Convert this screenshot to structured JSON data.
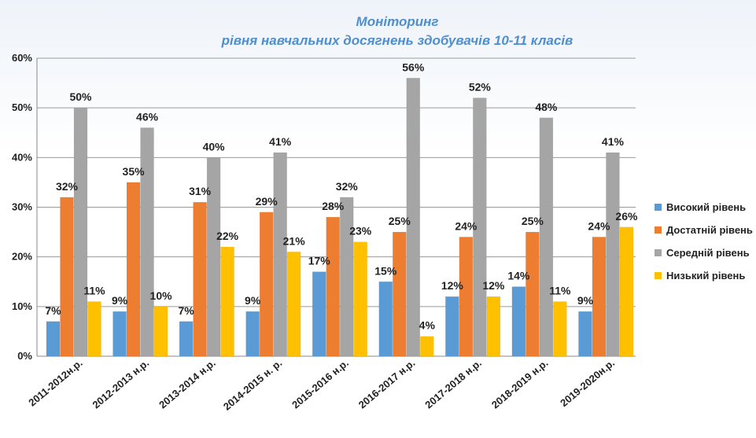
{
  "chart_data": {
    "type": "bar",
    "title": [
      "Моніторинг",
      "рівня навчальних досягнень здобувачів  10-11 класів"
    ],
    "categories": [
      "2011-2012н.р.",
      "2012-2013 н.р.",
      "2013-2014 н.р.",
      "2014-2015 н. р.",
      "2015-2016 н.р.",
      "2016-2017 н.р.",
      "2017-2018 н.р.",
      "2018-2019 н.р.",
      "2019-2020н.р."
    ],
    "series": [
      {
        "name": "Високий рівень",
        "color": "#5b9bd5",
        "values": [
          7,
          9,
          7,
          9,
          17,
          15,
          12,
          14,
          9
        ]
      },
      {
        "name": "Достатній рівень",
        "color": "#ed7d31",
        "values": [
          32,
          35,
          31,
          29,
          28,
          25,
          24,
          25,
          24
        ]
      },
      {
        "name": "Середній рівень",
        "color": "#a5a5a5",
        "values": [
          50,
          46,
          40,
          41,
          32,
          56,
          52,
          48,
          41
        ]
      },
      {
        "name": "Низький рівень",
        "color": "#ffc000",
        "values": [
          11,
          10,
          22,
          21,
          23,
          4,
          12,
          11,
          26
        ]
      }
    ],
    "ylim": [
      0,
      60
    ],
    "yticks": [
      "0%",
      "10%",
      "20%",
      "30%",
      "40%",
      "50%",
      "60%"
    ],
    "value_suffix": "%",
    "legend": "right",
    "grid": true
  }
}
